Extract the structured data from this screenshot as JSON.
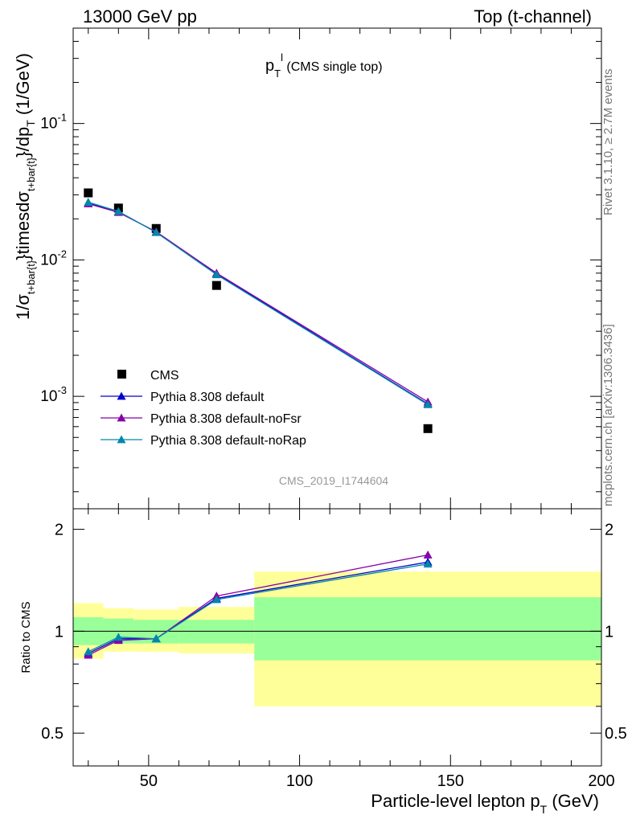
{
  "header": {
    "left": "13000 GeV pp",
    "right": "Top (t-channel)"
  },
  "side_labels": {
    "upper": "Rivet 3.1.10, ≥ 2.7M events",
    "lower": "mcplots.cern.ch [arXiv:1306.3436]"
  },
  "chart_data": [
    {
      "type": "scatter",
      "title": "p_T^l (CMS single top)",
      "watermark": "CMS_2019_I1744604",
      "ylabel": "1/σ_{t+bar{t}}}timesdσ_{t+bar{t}}}/dp_T (1/GeV)",
      "yscale": "log",
      "xlim": [
        25,
        200
      ],
      "ylim": [
        0.00015,
        0.5
      ],
      "y_ticks": [
        {
          "value": 0.001,
          "label": "10^-3"
        },
        {
          "value": 0.01,
          "label": "10^-2"
        },
        {
          "value": 0.1,
          "label": "10^-1"
        }
      ],
      "legend_position": "bottom-left",
      "series": [
        {
          "name": "CMS",
          "marker": "square",
          "color": "#000000",
          "x": [
            30,
            40,
            52.5,
            72.5,
            142.5
          ],
          "y": [
            0.031,
            0.024,
            0.017,
            0.0065,
            0.00058
          ]
        },
        {
          "name": "Pythia 8.308 default",
          "marker": "triangle",
          "color": "#0000cc",
          "x": [
            30,
            40,
            52.5,
            72.5,
            142.5
          ],
          "y": [
            0.026,
            0.0225,
            0.016,
            0.0079,
            0.00088
          ]
        },
        {
          "name": "Pythia 8.308 default-noFsr",
          "marker": "triangle",
          "color": "#8800aa",
          "x": [
            30,
            40,
            52.5,
            72.5,
            142.5
          ],
          "y": [
            0.0258,
            0.0223,
            0.0161,
            0.008,
            0.00091
          ]
        },
        {
          "name": "Pythia 8.308 default-noRap",
          "marker": "triangle",
          "color": "#0088aa",
          "x": [
            30,
            40,
            52.5,
            72.5,
            142.5
          ],
          "y": [
            0.0265,
            0.0227,
            0.0159,
            0.0078,
            0.00087
          ]
        }
      ]
    },
    {
      "type": "line",
      "ylabel": "Ratio to CMS",
      "xlabel": "Particle-level lepton p_T (GeV)",
      "xlim": [
        25,
        200
      ],
      "ylim": [
        0.4,
        2.3
      ],
      "x_ticks": [
        50,
        100,
        150,
        200
      ],
      "y_ticks": [
        0.5,
        1,
        2
      ],
      "colors": {
        "stat_band": "#99ff99",
        "total_band": "#ffff99"
      },
      "bins": [
        {
          "x": [
            25,
            35
          ],
          "stat": [
            0.91,
            1.1
          ],
          "total": [
            0.83,
            1.21
          ]
        },
        {
          "x": [
            35,
            45
          ],
          "stat": [
            0.92,
            1.09
          ],
          "total": [
            0.87,
            1.17
          ]
        },
        {
          "x": [
            45,
            60
          ],
          "stat": [
            0.92,
            1.08
          ],
          "total": [
            0.87,
            1.16
          ]
        },
        {
          "x": [
            60,
            85
          ],
          "stat": [
            0.92,
            1.08
          ],
          "total": [
            0.86,
            1.18
          ]
        },
        {
          "x": [
            85,
            200
          ],
          "stat": [
            0.82,
            1.26
          ],
          "total": [
            0.6,
            1.5
          ]
        }
      ],
      "series": [
        {
          "name": "Pythia 8.308 default",
          "color": "#0000cc",
          "x": [
            30,
            40,
            52.5,
            72.5,
            142.5
          ],
          "y": [
            0.86,
            0.95,
            0.95,
            1.25,
            1.6
          ]
        },
        {
          "name": "Pythia 8.308 default-noFsr",
          "color": "#8800aa",
          "x": [
            30,
            40,
            52.5,
            72.5,
            142.5
          ],
          "y": [
            0.85,
            0.94,
            0.95,
            1.27,
            1.68
          ]
        },
        {
          "name": "Pythia 8.308 default-noRap",
          "color": "#0088aa",
          "x": [
            30,
            40,
            52.5,
            72.5,
            142.5
          ],
          "y": [
            0.87,
            0.96,
            0.95,
            1.24,
            1.58
          ]
        }
      ]
    }
  ]
}
